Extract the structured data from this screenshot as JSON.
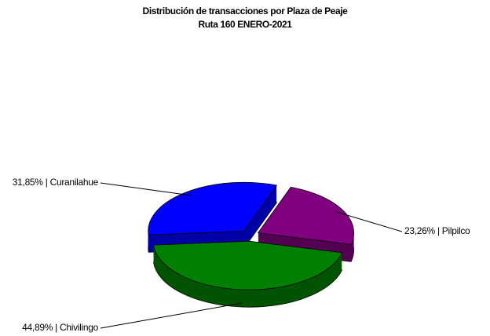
{
  "chart_data": {
    "type": "pie",
    "title": "Distribución de transacciones por Plaza de Peaje",
    "subtitle": "Ruta 160 ENERO-2021",
    "categories": [
      "Pilpilco",
      "Chivilingo",
      "Curanilahue"
    ],
    "values": [
      23.26,
      44.89,
      31.85
    ],
    "value_labels": [
      "23,26%",
      "44,89%",
      "31,85%"
    ],
    "label_separator": " | ",
    "colors": [
      "#800080",
      "#008000",
      "#0000ff"
    ]
  }
}
